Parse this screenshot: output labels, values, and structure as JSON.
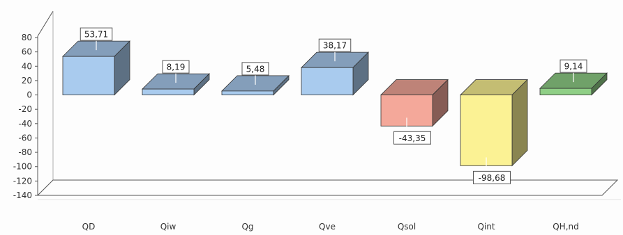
{
  "chart_data": {
    "type": "bar",
    "title": "",
    "xlabel": "",
    "ylabel": "",
    "ylim": [
      -140,
      80
    ],
    "yticks": [
      80,
      60,
      40,
      20,
      0,
      -20,
      -40,
      -60,
      -80,
      -100,
      -120,
      -140
    ],
    "ytick_labels": [
      "80",
      "60",
      "40",
      "20",
      "0",
      "-20",
      "-40",
      "-60",
      "-80",
      "-100",
      "-120",
      "-140"
    ],
    "categories": [
      "QD",
      "Qiw",
      "Qg",
      "Qve",
      "Qsol",
      "Qint",
      "QH,nd"
    ],
    "values": [
      53.71,
      8.19,
      5.48,
      38.17,
      -43.35,
      -98.68,
      9.14
    ],
    "value_labels": [
      "53,71",
      "8,19",
      "5,48",
      "38,17",
      "-43,35",
      "-98,68",
      "9,14"
    ],
    "bar_colors": [
      "#a9cbee",
      "#a9cbee",
      "#a9cbee",
      "#a9cbee",
      "#f4a89a",
      "#fbf294",
      "#8fcf86"
    ],
    "grid": false,
    "legend": "none",
    "style": "3d"
  }
}
